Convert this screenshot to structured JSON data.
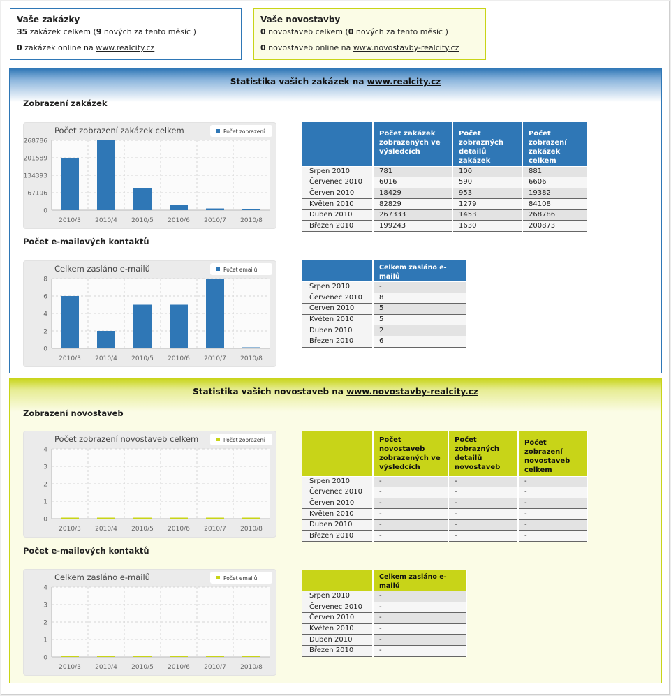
{
  "summary": {
    "orders": {
      "title": "Vaše zakázky",
      "total_count": "35",
      "total_text_a": " zakázek celkem (",
      "new_count": "9",
      "total_text_b": " nových za tento měsíc )",
      "online_count": "0",
      "online_text": " zakázek online na ",
      "link": "www.realcity.cz"
    },
    "newbuilds": {
      "title": "Vaše novostavby",
      "total_count": "0",
      "total_text_a": " novostaveb celkem (",
      "new_count": "0",
      "total_text_b": " nových za tento měsíc )",
      "online_count": "0",
      "online_text": " novostaveb online na ",
      "link": "www.novostavby-realcity.cz"
    }
  },
  "sections": {
    "orders": {
      "title_prefix": "Statistika vašich zakázek na ",
      "title_link": "www.realcity.cz",
      "views_heading": "Zobrazení zakázek",
      "emails_heading": "Počet e-mailových kontaktů",
      "views_table": {
        "headers": [
          "",
          "Počet zakázek zobrazených ve výsledcích",
          "Počet zobrazných detailů zakázek",
          "Počet zobrazení zakázek celkem"
        ],
        "rows": [
          [
            "Srpen 2010",
            "781",
            "100",
            "881"
          ],
          [
            "Červenec 2010",
            "6016",
            "590",
            "6606"
          ],
          [
            "Červen 2010",
            "18429",
            "953",
            "19382"
          ],
          [
            "Květen 2010",
            "82829",
            "1279",
            "84108"
          ],
          [
            "Duben 2010",
            "267333",
            "1453",
            "268786"
          ],
          [
            "Březen 2010",
            "199243",
            "1630",
            "200873"
          ]
        ]
      },
      "emails_table": {
        "headers": [
          "",
          "Celkem zasláno e-mailů"
        ],
        "rows": [
          [
            "Srpen 2010",
            "-"
          ],
          [
            "Červenec 2010",
            "8"
          ],
          [
            "Červen 2010",
            "5"
          ],
          [
            "Květen 2010",
            "5"
          ],
          [
            "Duben 2010",
            "2"
          ],
          [
            "Březen 2010",
            "6"
          ]
        ]
      }
    },
    "newbuilds": {
      "title_prefix": "Statistika vašich novostaveb na ",
      "title_link": "www.novostavby-realcity.cz",
      "views_heading": "Zobrazení novostaveb",
      "emails_heading": "Počet e-mailových kontaktů",
      "views_table": {
        "headers": [
          "",
          "Počet novostaveb zobrazených ve výsledcích",
          "Počet zobrazných detailů novostaveb",
          "Počet zobrazení novostaveb celkem"
        ],
        "rows": [
          [
            "Srpen 2010",
            "-",
            "-",
            "-"
          ],
          [
            "Červenec 2010",
            "-",
            "-",
            "-"
          ],
          [
            "Červen 2010",
            "-",
            "-",
            "-"
          ],
          [
            "Květen 2010",
            "-",
            "-",
            "-"
          ],
          [
            "Duben 2010",
            "-",
            "-",
            "-"
          ],
          [
            "Březen 2010",
            "-",
            "-",
            "-"
          ]
        ]
      },
      "emails_table": {
        "headers": [
          "",
          "Celkem zasláno e-mailů"
        ],
        "rows": [
          [
            "Srpen 2010",
            "-"
          ],
          [
            "Červenec 2010",
            "-"
          ],
          [
            "Červen 2010",
            "-"
          ],
          [
            "Květen 2010",
            "-"
          ],
          [
            "Duben 2010",
            "-"
          ],
          [
            "Březen 2010",
            "-"
          ]
        ]
      }
    }
  },
  "colors": {
    "blue": "#2f77b6",
    "green": "#c8d418"
  },
  "chart_data": [
    {
      "id": "orders_views",
      "type": "bar",
      "title": "Počet zobrazení zakázek celkem",
      "legend": "Počet zobrazení",
      "legend_position": "top-right",
      "color": "#2f77b6",
      "categories": [
        "2010/3",
        "2010/4",
        "2010/5",
        "2010/6",
        "2010/7",
        "2010/8"
      ],
      "values": [
        200873,
        268786,
        84108,
        19382,
        6606,
        881
      ],
      "yticks": [
        "0",
        "67196",
        "134393",
        "201589",
        "268786"
      ],
      "ylim": [
        0,
        268786
      ],
      "grid": true
    },
    {
      "id": "orders_emails",
      "type": "bar",
      "title": "Celkem zasláno e-mailů",
      "legend": "Počet emailů",
      "legend_position": "top-right",
      "color": "#2f77b6",
      "categories": [
        "2010/3",
        "2010/4",
        "2010/5",
        "2010/6",
        "2010/7",
        "2010/8"
      ],
      "values": [
        6,
        2,
        5,
        5,
        8,
        0
      ],
      "yticks": [
        "0",
        "2",
        "4",
        "6",
        "8"
      ],
      "ylim": [
        0,
        8
      ],
      "grid": true
    },
    {
      "id": "newbuilds_views",
      "type": "bar",
      "title": "Počet zobrazení novostaveb celkem",
      "legend": "Počet zobrazení",
      "legend_position": "top-right",
      "color": "#c8d418",
      "categories": [
        "2010/3",
        "2010/4",
        "2010/5",
        "2010/6",
        "2010/7",
        "2010/8"
      ],
      "values": [
        0,
        0,
        0,
        0,
        0,
        0
      ],
      "yticks": [
        "0",
        "1",
        "2",
        "3",
        "4"
      ],
      "ylim": [
        0,
        4
      ],
      "grid": true
    },
    {
      "id": "newbuilds_emails",
      "type": "bar",
      "title": "Celkem zasláno e-mailů",
      "legend": "Počet emailů",
      "legend_position": "top-right",
      "color": "#c8d418",
      "categories": [
        "2010/3",
        "2010/4",
        "2010/5",
        "2010/6",
        "2010/7",
        "2010/8"
      ],
      "values": [
        0,
        0,
        0,
        0,
        0,
        0
      ],
      "yticks": [
        "0",
        "1",
        "2",
        "3",
        "4"
      ],
      "ylim": [
        0,
        4
      ],
      "grid": true
    }
  ]
}
